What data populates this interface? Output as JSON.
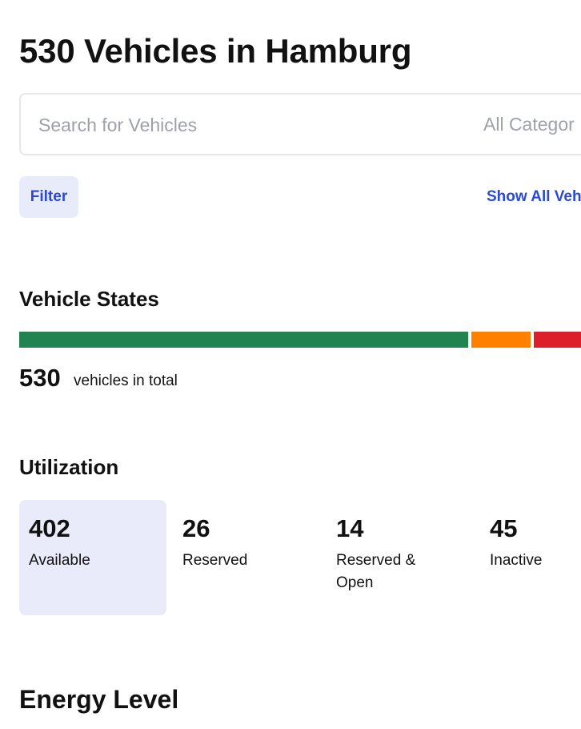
{
  "header": {
    "title": "530 Vehicles in Hamburg"
  },
  "search": {
    "placeholder": "Search for Vehicles",
    "category": "All Categor"
  },
  "toolbar": {
    "filter_label": "Filter",
    "show_all_label": "Show All Veh"
  },
  "vehicle_states": {
    "title": "Vehicle States",
    "total": "530",
    "total_label": "vehicles in total",
    "bar_colors": {
      "available": "#208350",
      "reserved": "#ff7f00",
      "inactive": "#dc1f2b"
    }
  },
  "utilization": {
    "title": "Utilization",
    "items": [
      {
        "value": "402",
        "label": "Available",
        "selected": true
      },
      {
        "value": "26",
        "label": "Reserved",
        "selected": false
      },
      {
        "value": "14",
        "label": "Reserved & Open",
        "selected": false
      },
      {
        "value": "45",
        "label": "Inactive",
        "selected": false
      }
    ]
  },
  "energy": {
    "title": "Energy Level"
  },
  "colors": {
    "accent": "#2b49d7",
    "selected_background": "#e9ebfa"
  }
}
